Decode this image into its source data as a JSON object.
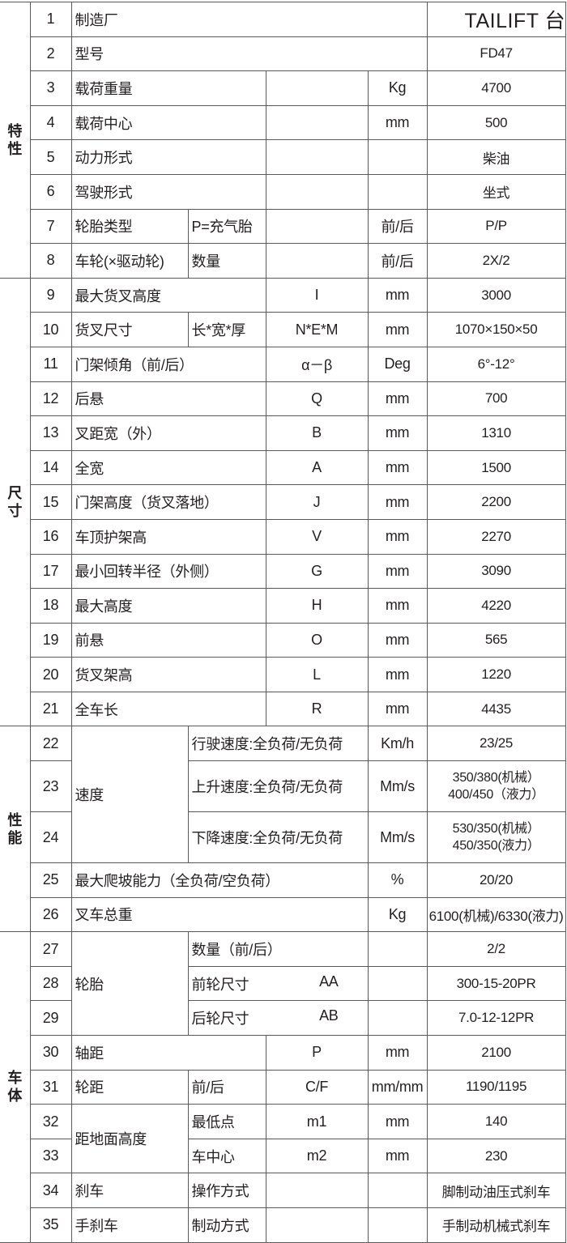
{
  "sections": [
    {
      "label": "特性"
    },
    {
      "label": "尺寸"
    },
    {
      "label": "性能"
    },
    {
      "label": "车体"
    }
  ],
  "rows": [
    {
      "num": "1",
      "name": "制造厂",
      "value": "TAILIFT 台"
    },
    {
      "num": "2",
      "name": "型号",
      "value": "FD47"
    },
    {
      "num": "3",
      "name": "载荷重量",
      "code": "",
      "unit": "Kg",
      "value": "4700"
    },
    {
      "num": "4",
      "name": "载荷中心",
      "code": "",
      "unit": "mm",
      "value": "500"
    },
    {
      "num": "5",
      "name": "动力形式",
      "code": "",
      "unit": "",
      "value": "柴油"
    },
    {
      "num": "6",
      "name": "驾驶形式",
      "code": "",
      "unit": "",
      "value": "坐式"
    },
    {
      "num": "7",
      "name": "轮胎类型",
      "sub": "P=充气胎",
      "code": "",
      "unit": "前/后",
      "value": "P/P"
    },
    {
      "num": "8",
      "name": "车轮(×驱动轮)",
      "sub": "数量",
      "code": "",
      "unit": "前/后",
      "value": "2X/2"
    },
    {
      "num": "9",
      "name": "最大货叉高度",
      "code": "I",
      "unit": "mm",
      "value": "3000"
    },
    {
      "num": "10",
      "name": "货叉尺寸",
      "sub": "长*宽*厚",
      "code": "N*E*M",
      "unit": "mm",
      "value": "1070×150×50"
    },
    {
      "num": "11",
      "name": "门架倾角（前/后）",
      "code": "α－β",
      "unit": "Deg",
      "value": "6°-12°"
    },
    {
      "num": "12",
      "name": "后悬",
      "code": "Q",
      "unit": "mm",
      "value": "700"
    },
    {
      "num": "13",
      "name": "叉距宽（外）",
      "code": "B",
      "unit": "mm",
      "value": "1310"
    },
    {
      "num": "14",
      "name": "全宽",
      "code": "A",
      "unit": "mm",
      "value": "1500"
    },
    {
      "num": "15",
      "name": "门架高度（货叉落地）",
      "code": "J",
      "unit": "mm",
      "value": "2200"
    },
    {
      "num": "16",
      "name": "车顶护架高",
      "code": "V",
      "unit": "mm",
      "value": "2270"
    },
    {
      "num": "17",
      "name": "最小回转半径（外侧）",
      "code": "G",
      "unit": "mm",
      "value": "3090"
    },
    {
      "num": "18",
      "name": "最大高度",
      "code": "H",
      "unit": "mm",
      "value": "4220"
    },
    {
      "num": "19",
      "name": "前悬",
      "code": "O",
      "unit": "mm",
      "value": "565"
    },
    {
      "num": "20",
      "name": "货叉架高",
      "code": "L",
      "unit": "mm",
      "value": "1220"
    },
    {
      "num": "21",
      "name": "全车长",
      "code": "R",
      "unit": "mm",
      "value": "4435"
    },
    {
      "num": "22",
      "name": "速度",
      "sub": "行驶速度:全负荷/无负荷",
      "unit": "Km/h",
      "value": "23/25"
    },
    {
      "num": "23",
      "sub": "上升速度:全负荷/无负荷",
      "unit": "Mm/s",
      "value": "350/380(机械）\n400/450（液力）"
    },
    {
      "num": "24",
      "sub": "下降速度:全负荷/无负荷",
      "unit": "Mm/s",
      "value": "530/350(机械）\n450/350(液力）"
    },
    {
      "num": "25",
      "name": "最大爬坡能力（全负荷/空负荷）",
      "unit": "%",
      "value": "20/20"
    },
    {
      "num": "26",
      "name": "叉车总重",
      "unit": "Kg",
      "value": "6100(机械)/6330(液力)"
    },
    {
      "num": "27",
      "name": "轮胎",
      "sub": "数量（前/后）",
      "unit": "",
      "value": "2/2"
    },
    {
      "num": "28",
      "sub": "前轮尺寸",
      "code": "AA",
      "unit": "",
      "value": "300-15-20PR"
    },
    {
      "num": "29",
      "sub": "后轮尺寸",
      "code": "AB",
      "unit": "",
      "value": "7.0-12-12PR"
    },
    {
      "num": "30",
      "name": "轴距",
      "code": "P",
      "unit": "mm",
      "value": "2100"
    },
    {
      "num": "31",
      "name": "轮距",
      "sub": "前/后",
      "code": "C/F",
      "unit": "mm/mm",
      "value": "1190/1195"
    },
    {
      "num": "32",
      "name": "距地面高度",
      "sub": "最低点",
      "code": "m1",
      "unit": "mm",
      "value": "140"
    },
    {
      "num": "33",
      "sub": "车中心",
      "code": "m2",
      "unit": "mm",
      "value": "230"
    },
    {
      "num": "34",
      "name": "刹车",
      "sub": "操作方式",
      "code": "",
      "unit": "",
      "value": "脚制动油压式刹车"
    },
    {
      "num": "35",
      "name": "手刹车",
      "sub": "制动方式",
      "code": "",
      "unit": "",
      "value": "手制动机械式刹车"
    }
  ]
}
